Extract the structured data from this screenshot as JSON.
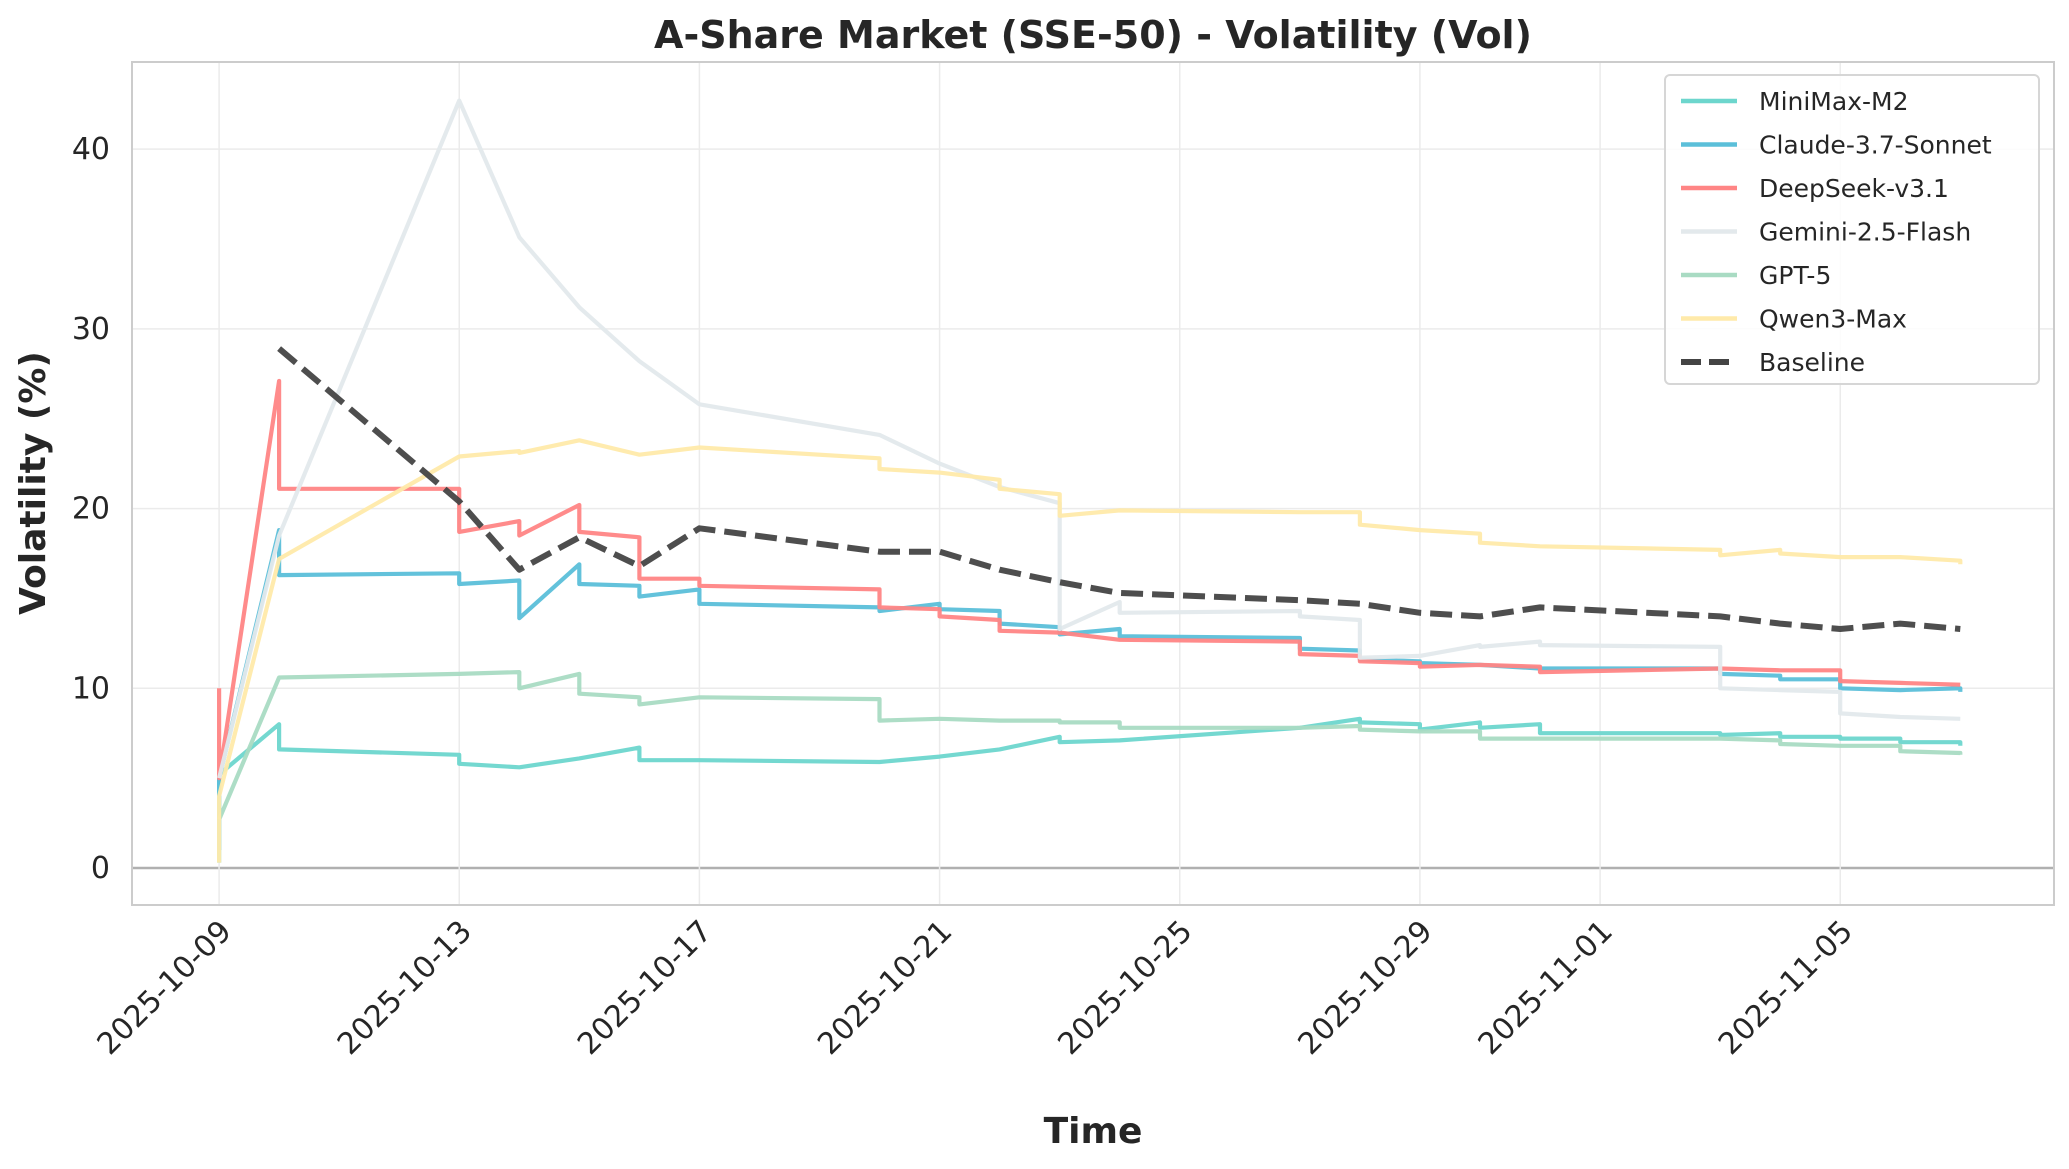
{
  "chart_data": {
    "type": "line",
    "title": "A-Share Market (SSE-50) - Volatility (Vol)",
    "xlabel": "Time",
    "ylabel": "Volatility (%)",
    "ylim": [
      -2.06,
      44.85
    ],
    "xlim": [
      "2025-10-07",
      "2025-11-08"
    ],
    "yticks": [
      0,
      10,
      20,
      30,
      40
    ],
    "xticks": [
      "2025-10-09",
      "2025-10-13",
      "2025-10-17",
      "2025-10-21",
      "2025-10-25",
      "2025-10-29",
      "2025-11-01",
      "2025-11-05"
    ],
    "grid": true,
    "legend_position": "top-right",
    "series": [
      {
        "name": "MiniMax-M2",
        "color": "#6dd6cd",
        "dashed": false,
        "points": [
          [
            "2025-10-09",
            0.3
          ],
          [
            "2025-10-09",
            5.2
          ],
          [
            "2025-10-10",
            8.0
          ],
          [
            "2025-10-10",
            6.6
          ],
          [
            "2025-10-13",
            6.3
          ],
          [
            "2025-10-13",
            5.8
          ],
          [
            "2025-10-14",
            5.6
          ],
          [
            "2025-10-15",
            6.1
          ],
          [
            "2025-10-16",
            6.7
          ],
          [
            "2025-10-16",
            6.0
          ],
          [
            "2025-10-17",
            6.0
          ],
          [
            "2025-10-20",
            5.9
          ],
          [
            "2025-10-21",
            6.2
          ],
          [
            "2025-10-22",
            6.6
          ],
          [
            "2025-10-23",
            7.3
          ],
          [
            "2025-10-23",
            7.0
          ],
          [
            "2025-10-24",
            7.1
          ],
          [
            "2025-10-27",
            7.8
          ],
          [
            "2025-10-28",
            8.3
          ],
          [
            "2025-10-28",
            8.1
          ],
          [
            "2025-10-29",
            8.0
          ],
          [
            "2025-10-29",
            7.7
          ],
          [
            "2025-10-30",
            8.1
          ],
          [
            "2025-10-30",
            7.8
          ],
          [
            "2025-10-31",
            8.0
          ],
          [
            "2025-10-31",
            7.5
          ],
          [
            "2025-11-03",
            7.5
          ],
          [
            "2025-11-03",
            7.4
          ],
          [
            "2025-11-04",
            7.5
          ],
          [
            "2025-11-04",
            7.3
          ],
          [
            "2025-11-05",
            7.3
          ],
          [
            "2025-11-05",
            7.2
          ],
          [
            "2025-11-06",
            7.2
          ],
          [
            "2025-11-06",
            7.0
          ],
          [
            "2025-11-07",
            7.0
          ],
          [
            "2025-11-07",
            6.8
          ]
        ]
      },
      {
        "name": "Claude-3.7-Sonnet",
        "color": "#5bbfd9",
        "dashed": false,
        "points": [
          [
            "2025-10-09",
            1.0
          ],
          [
            "2025-10-09",
            5.0
          ],
          [
            "2025-10-10",
            18.8
          ],
          [
            "2025-10-10",
            16.3
          ],
          [
            "2025-10-13",
            16.4
          ],
          [
            "2025-10-13",
            15.8
          ],
          [
            "2025-10-14",
            16.0
          ],
          [
            "2025-10-14",
            13.9
          ],
          [
            "2025-10-15",
            16.9
          ],
          [
            "2025-10-15",
            15.8
          ],
          [
            "2025-10-16",
            15.7
          ],
          [
            "2025-10-16",
            15.1
          ],
          [
            "2025-10-17",
            15.5
          ],
          [
            "2025-10-17",
            14.7
          ],
          [
            "2025-10-20",
            14.5
          ],
          [
            "2025-10-20",
            14.3
          ],
          [
            "2025-10-21",
            14.7
          ],
          [
            "2025-10-21",
            14.4
          ],
          [
            "2025-10-22",
            14.3
          ],
          [
            "2025-10-22",
            13.6
          ],
          [
            "2025-10-23",
            13.4
          ],
          [
            "2025-10-23",
            13.0
          ],
          [
            "2025-10-24",
            13.3
          ],
          [
            "2025-10-24",
            12.9
          ],
          [
            "2025-10-27",
            12.8
          ],
          [
            "2025-10-27",
            12.2
          ],
          [
            "2025-10-28",
            12.1
          ],
          [
            "2025-10-28",
            11.6
          ],
          [
            "2025-10-29",
            11.5
          ],
          [
            "2025-10-29",
            11.4
          ],
          [
            "2025-10-30",
            11.3
          ],
          [
            "2025-10-31",
            11.1
          ],
          [
            "2025-11-03",
            11.1
          ],
          [
            "2025-11-03",
            10.8
          ],
          [
            "2025-11-04",
            10.7
          ],
          [
            "2025-11-04",
            10.5
          ],
          [
            "2025-11-05",
            10.5
          ],
          [
            "2025-11-05",
            10.0
          ],
          [
            "2025-11-06",
            9.9
          ],
          [
            "2025-11-07",
            10.0
          ],
          [
            "2025-11-07",
            9.8
          ]
        ]
      },
      {
        "name": "DeepSeek-v3.1",
        "color": "#ff8585",
        "dashed": false,
        "points": [
          [
            "2025-10-09",
            10.0
          ],
          [
            "2025-10-09",
            5.0
          ],
          [
            "2025-10-10",
            27.1
          ],
          [
            "2025-10-10",
            21.1
          ],
          [
            "2025-10-13",
            21.1
          ],
          [
            "2025-10-13",
            18.7
          ],
          [
            "2025-10-14",
            19.3
          ],
          [
            "2025-10-14",
            18.5
          ],
          [
            "2025-10-15",
            20.2
          ],
          [
            "2025-10-15",
            18.7
          ],
          [
            "2025-10-16",
            18.4
          ],
          [
            "2025-10-16",
            16.1
          ],
          [
            "2025-10-17",
            16.1
          ],
          [
            "2025-10-17",
            15.7
          ],
          [
            "2025-10-20",
            15.5
          ],
          [
            "2025-10-20",
            14.5
          ],
          [
            "2025-10-21",
            14.4
          ],
          [
            "2025-10-21",
            14.0
          ],
          [
            "2025-10-22",
            13.8
          ],
          [
            "2025-10-22",
            13.2
          ],
          [
            "2025-10-23",
            13.1
          ],
          [
            "2025-10-24",
            12.7
          ],
          [
            "2025-10-27",
            12.6
          ],
          [
            "2025-10-27",
            11.9
          ],
          [
            "2025-10-28",
            11.8
          ],
          [
            "2025-10-28",
            11.5
          ],
          [
            "2025-10-29",
            11.4
          ],
          [
            "2025-10-29",
            11.2
          ],
          [
            "2025-10-30",
            11.3
          ],
          [
            "2025-10-31",
            11.2
          ],
          [
            "2025-10-31",
            10.9
          ],
          [
            "2025-11-03",
            11.1
          ],
          [
            "2025-11-04",
            11.0
          ],
          [
            "2025-11-05",
            11.0
          ],
          [
            "2025-11-05",
            10.4
          ],
          [
            "2025-11-06",
            10.3
          ],
          [
            "2025-11-07",
            10.2
          ]
        ]
      },
      {
        "name": "Gemini-2.5-Flash",
        "color": "#e3e9ec",
        "dashed": false,
        "points": [
          [
            "2025-10-09",
            5.0
          ],
          [
            "2025-10-10",
            18.5
          ],
          [
            "2025-10-13",
            42.7
          ],
          [
            "2025-10-14",
            35.1
          ],
          [
            "2025-10-15",
            31.2
          ],
          [
            "2025-10-16",
            28.2
          ],
          [
            "2025-10-17",
            25.8
          ],
          [
            "2025-10-20",
            24.1
          ],
          [
            "2025-10-21",
            22.5
          ],
          [
            "2025-10-22",
            21.2
          ],
          [
            "2025-10-23",
            20.3
          ],
          [
            "2025-10-23",
            13.3
          ],
          [
            "2025-10-24",
            14.8
          ],
          [
            "2025-10-24",
            14.2
          ],
          [
            "2025-10-27",
            14.3
          ],
          [
            "2025-10-27",
            14.0
          ],
          [
            "2025-10-28",
            13.8
          ],
          [
            "2025-10-28",
            11.7
          ],
          [
            "2025-10-29",
            11.8
          ],
          [
            "2025-10-30",
            12.4
          ],
          [
            "2025-10-30",
            12.3
          ],
          [
            "2025-10-31",
            12.6
          ],
          [
            "2025-10-31",
            12.4
          ],
          [
            "2025-11-03",
            12.3
          ],
          [
            "2025-11-03",
            10.0
          ],
          [
            "2025-11-04",
            9.9
          ],
          [
            "2025-11-05",
            9.8
          ],
          [
            "2025-11-05",
            8.6
          ],
          [
            "2025-11-06",
            8.4
          ],
          [
            "2025-11-07",
            8.3
          ]
        ]
      },
      {
        "name": "GPT-5",
        "color": "#a9dbc3",
        "dashed": false,
        "points": [
          [
            "2025-10-09",
            2.7
          ],
          [
            "2025-10-10",
            10.6
          ],
          [
            "2025-10-13",
            10.8
          ],
          [
            "2025-10-14",
            10.9
          ],
          [
            "2025-10-14",
            10.0
          ],
          [
            "2025-10-15",
            10.8
          ],
          [
            "2025-10-15",
            9.7
          ],
          [
            "2025-10-16",
            9.5
          ],
          [
            "2025-10-16",
            9.1
          ],
          [
            "2025-10-17",
            9.5
          ],
          [
            "2025-10-20",
            9.4
          ],
          [
            "2025-10-20",
            8.2
          ],
          [
            "2025-10-21",
            8.3
          ],
          [
            "2025-10-22",
            8.2
          ],
          [
            "2025-10-23",
            8.2
          ],
          [
            "2025-10-23",
            8.1
          ],
          [
            "2025-10-24",
            8.1
          ],
          [
            "2025-10-24",
            7.8
          ],
          [
            "2025-10-27",
            7.8
          ],
          [
            "2025-10-28",
            7.9
          ],
          [
            "2025-10-28",
            7.7
          ],
          [
            "2025-10-29",
            7.6
          ],
          [
            "2025-10-30",
            7.6
          ],
          [
            "2025-10-30",
            7.2
          ],
          [
            "2025-10-31",
            7.2
          ],
          [
            "2025-11-03",
            7.2
          ],
          [
            "2025-11-04",
            7.1
          ],
          [
            "2025-11-04",
            6.9
          ],
          [
            "2025-11-05",
            6.8
          ],
          [
            "2025-11-06",
            6.8
          ],
          [
            "2025-11-06",
            6.5
          ],
          [
            "2025-11-07",
            6.4
          ],
          [
            "2025-11-07",
            6.3
          ]
        ]
      },
      {
        "name": "Qwen3-Max",
        "color": "#ffeaaa",
        "dashed": false,
        "points": [
          [
            "2025-10-09",
            0.3
          ],
          [
            "2025-10-09",
            4.0
          ],
          [
            "2025-10-10",
            17.2
          ],
          [
            "2025-10-13",
            22.9
          ],
          [
            "2025-10-14",
            23.2
          ],
          [
            "2025-10-14",
            23.1
          ],
          [
            "2025-10-15",
            23.8
          ],
          [
            "2025-10-16",
            23.0
          ],
          [
            "2025-10-17",
            23.4
          ],
          [
            "2025-10-20",
            22.8
          ],
          [
            "2025-10-20",
            22.2
          ],
          [
            "2025-10-21",
            22.0
          ],
          [
            "2025-10-22",
            21.6
          ],
          [
            "2025-10-22",
            21.1
          ],
          [
            "2025-10-23",
            20.8
          ],
          [
            "2025-10-23",
            19.6
          ],
          [
            "2025-10-24",
            19.9
          ],
          [
            "2025-10-27",
            19.8
          ],
          [
            "2025-10-28",
            19.8
          ],
          [
            "2025-10-28",
            19.1
          ],
          [
            "2025-10-29",
            18.8
          ],
          [
            "2025-10-30",
            18.6
          ],
          [
            "2025-10-30",
            18.1
          ],
          [
            "2025-10-31",
            17.9
          ],
          [
            "2025-11-03",
            17.7
          ],
          [
            "2025-11-03",
            17.4
          ],
          [
            "2025-11-04",
            17.7
          ],
          [
            "2025-11-04",
            17.5
          ],
          [
            "2025-11-05",
            17.3
          ],
          [
            "2025-11-06",
            17.3
          ],
          [
            "2025-11-07",
            17.1
          ],
          [
            "2025-11-07",
            16.9
          ]
        ]
      },
      {
        "name": "Baseline",
        "color": "#444444",
        "dashed": true,
        "points": [
          [
            "2025-10-10",
            28.9
          ],
          [
            "2025-10-13",
            20.4
          ],
          [
            "2025-10-14",
            16.6
          ],
          [
            "2025-10-15",
            18.4
          ],
          [
            "2025-10-16",
            16.8
          ],
          [
            "2025-10-17",
            18.9
          ],
          [
            "2025-10-20",
            17.6
          ],
          [
            "2025-10-21",
            17.6
          ],
          [
            "2025-10-22",
            16.6
          ],
          [
            "2025-10-23",
            15.9
          ],
          [
            "2025-10-24",
            15.3
          ],
          [
            "2025-10-27",
            14.9
          ],
          [
            "2025-10-28",
            14.7
          ],
          [
            "2025-10-29",
            14.2
          ],
          [
            "2025-10-30",
            14.0
          ],
          [
            "2025-10-31",
            14.5
          ],
          [
            "2025-11-03",
            14.0
          ],
          [
            "2025-11-04",
            13.6
          ],
          [
            "2025-11-05",
            13.3
          ],
          [
            "2025-11-06",
            13.6
          ],
          [
            "2025-11-07",
            13.3
          ]
        ]
      }
    ]
  }
}
